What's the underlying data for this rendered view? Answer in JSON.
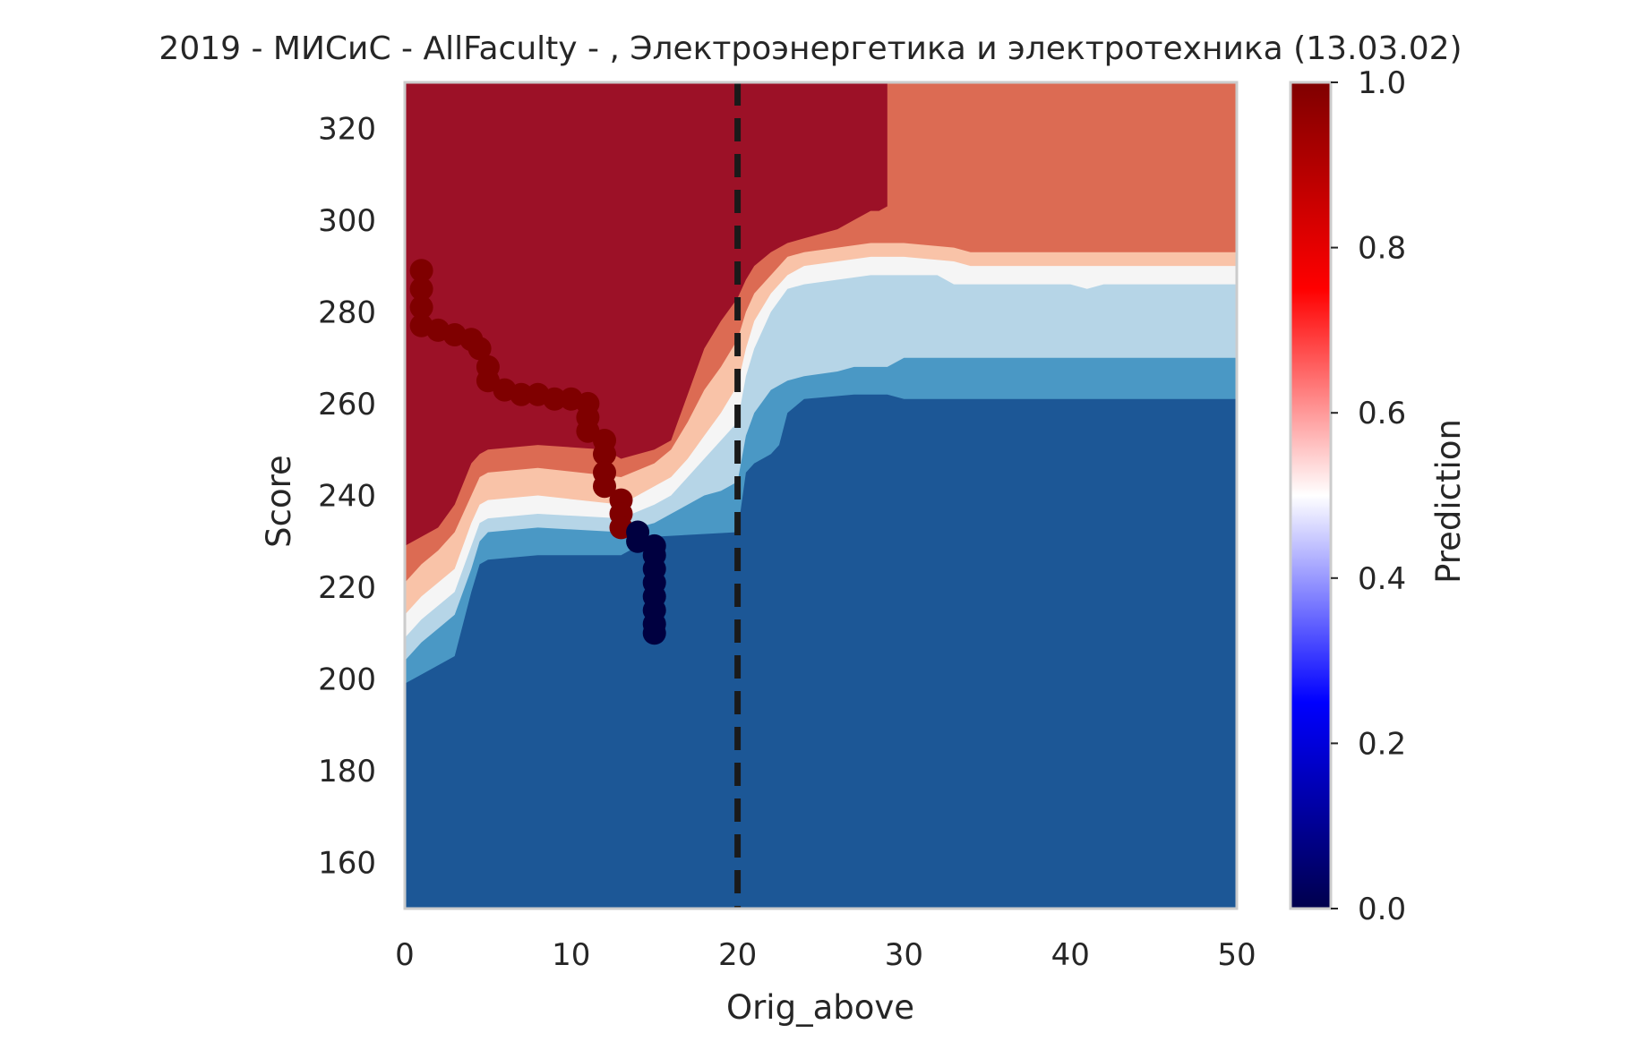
{
  "chart_data": {
    "type": "heatmap",
    "title": "2019 - МИСиС - AllFaculty - , Электроэнергетика и электротехника (13.03.02)",
    "xlabel": "Orig_above",
    "ylabel": "Score",
    "xlim": [
      0,
      50
    ],
    "ylim": [
      150,
      330
    ],
    "x_ticks": [
      "0",
      "10",
      "20",
      "30",
      "40",
      "50"
    ],
    "y_ticks": [
      "160",
      "180",
      "200",
      "220",
      "240",
      "260",
      "280",
      "300",
      "320"
    ],
    "grid": false,
    "threshold_line": {
      "x": 20,
      "style": "dashed",
      "color": "#1a1a1a"
    },
    "colorbar": {
      "label": "Prediction",
      "range": [
        0,
        1
      ],
      "ticks": [
        "0.0",
        "0.2",
        "0.4",
        "0.6",
        "0.8",
        "1.0"
      ],
      "colormap": "seismic"
    },
    "contour_levels": [
      {
        "level": "0.0-0.2",
        "color": "#1c5796"
      },
      {
        "level": "0.2-0.3",
        "color": "#4a98c5"
      },
      {
        "level": "0.3-0.4",
        "color": "#b6d5e7"
      },
      {
        "level": "0.4-0.5",
        "color": "#f5f5f5"
      },
      {
        "level": "0.5-0.6",
        "color": "#f9c3a8"
      },
      {
        "level": "0.6-0.8",
        "color": "#dc6b53"
      },
      {
        "level": "0.8-1.0",
        "color": "#9c1127"
      }
    ],
    "boundaries": [
      {
        "name": "level-0.2",
        "points": [
          [
            0,
            199
          ],
          [
            1,
            201
          ],
          [
            2,
            203
          ],
          [
            3,
            205
          ],
          [
            4,
            219
          ],
          [
            4.5,
            225
          ],
          [
            5,
            226
          ],
          [
            8,
            227
          ],
          [
            13,
            227
          ],
          [
            15,
            231
          ],
          [
            20,
            232
          ],
          [
            20.5,
            245
          ],
          [
            21,
            247
          ],
          [
            22,
            249
          ],
          [
            22.5,
            251
          ],
          [
            23,
            258
          ],
          [
            24,
            261
          ],
          [
            27,
            262
          ],
          [
            29,
            262
          ],
          [
            30,
            261
          ],
          [
            50,
            261
          ]
        ]
      },
      {
        "name": "level-0.3",
        "points": [
          [
            0,
            204
          ],
          [
            1,
            208
          ],
          [
            2,
            211
          ],
          [
            3,
            214
          ],
          [
            4,
            224
          ],
          [
            4.5,
            230
          ],
          [
            5,
            232
          ],
          [
            8,
            233
          ],
          [
            13,
            232
          ],
          [
            15,
            234
          ],
          [
            16,
            236
          ],
          [
            17,
            238
          ],
          [
            18,
            240
          ],
          [
            19,
            241
          ],
          [
            20,
            243
          ],
          [
            20.5,
            253
          ],
          [
            21,
            258
          ],
          [
            22,
            263
          ],
          [
            23,
            265
          ],
          [
            24,
            266
          ],
          [
            26,
            267
          ],
          [
            27,
            268
          ],
          [
            29,
            268
          ],
          [
            30,
            270
          ],
          [
            50,
            270
          ]
        ]
      },
      {
        "name": "level-0.4",
        "points": [
          [
            0,
            209
          ],
          [
            1,
            213
          ],
          [
            2,
            216
          ],
          [
            3,
            219
          ],
          [
            4,
            229
          ],
          [
            4.5,
            234
          ],
          [
            5,
            235
          ],
          [
            8,
            236
          ],
          [
            13,
            235
          ],
          [
            15,
            238
          ],
          [
            16,
            240
          ],
          [
            17,
            244
          ],
          [
            18,
            248
          ],
          [
            19,
            252
          ],
          [
            20,
            256
          ],
          [
            20.5,
            266
          ],
          [
            21,
            272
          ],
          [
            22,
            280
          ],
          [
            23,
            285
          ],
          [
            24,
            286
          ],
          [
            26,
            287
          ],
          [
            28,
            288
          ],
          [
            30,
            288
          ],
          [
            32,
            288
          ],
          [
            33,
            286
          ],
          [
            40,
            286
          ],
          [
            41,
            285
          ],
          [
            42,
            286
          ],
          [
            50,
            286
          ]
        ]
      },
      {
        "name": "level-0.5",
        "points": [
          [
            0,
            214
          ],
          [
            1,
            218
          ],
          [
            2,
            221
          ],
          [
            3,
            224
          ],
          [
            4,
            234
          ],
          [
            4.5,
            238
          ],
          [
            5,
            239
          ],
          [
            8,
            240
          ],
          [
            13,
            238
          ],
          [
            15,
            242
          ],
          [
            16,
            244
          ],
          [
            17,
            248
          ],
          [
            18,
            253
          ],
          [
            19,
            258
          ],
          [
            20,
            264
          ],
          [
            20.5,
            272
          ],
          [
            21,
            278
          ],
          [
            22,
            284
          ],
          [
            23,
            288
          ],
          [
            24,
            290
          ],
          [
            26,
            291
          ],
          [
            28,
            292
          ],
          [
            30,
            292
          ],
          [
            33,
            291
          ],
          [
            34,
            290
          ],
          [
            50,
            290
          ]
        ]
      },
      {
        "name": "level-0.6",
        "points": [
          [
            0,
            221
          ],
          [
            1,
            225
          ],
          [
            2,
            228
          ],
          [
            3,
            232
          ],
          [
            4,
            240
          ],
          [
            4.5,
            244
          ],
          [
            5,
            245
          ],
          [
            8,
            246
          ],
          [
            13,
            244
          ],
          [
            15,
            247
          ],
          [
            16,
            250
          ],
          [
            17,
            256
          ],
          [
            18,
            263
          ],
          [
            19,
            268
          ],
          [
            20,
            274
          ],
          [
            20.5,
            280
          ],
          [
            21,
            284
          ],
          [
            22,
            288
          ],
          [
            23,
            292
          ],
          [
            24,
            293
          ],
          [
            26,
            294
          ],
          [
            28,
            295
          ],
          [
            30,
            295
          ],
          [
            33,
            294
          ],
          [
            34,
            293
          ],
          [
            50,
            293
          ]
        ]
      },
      {
        "name": "level-0.8",
        "points": [
          [
            0,
            229
          ],
          [
            1,
            231
          ],
          [
            2,
            233
          ],
          [
            3,
            238
          ],
          [
            4,
            247
          ],
          [
            4.5,
            249
          ],
          [
            5,
            250
          ],
          [
            8,
            251
          ],
          [
            12,
            250
          ],
          [
            13,
            248
          ],
          [
            15,
            250
          ],
          [
            16,
            252
          ],
          [
            17,
            262
          ],
          [
            18,
            272
          ],
          [
            19,
            278
          ],
          [
            20,
            283
          ],
          [
            20.5,
            287
          ],
          [
            21,
            290
          ],
          [
            22,
            293
          ],
          [
            23,
            295
          ],
          [
            24,
            296
          ],
          [
            26,
            298
          ],
          [
            27,
            300
          ],
          [
            28,
            302
          ],
          [
            28.5,
            302
          ],
          [
            29,
            303
          ],
          [
            29,
            330
          ],
          [
            50,
            330
          ]
        ]
      }
    ],
    "scatter_high": {
      "label_value": 1.0,
      "color": "#7f0000",
      "points": [
        [
          1,
          289
        ],
        [
          1,
          285
        ],
        [
          1,
          281
        ],
        [
          1,
          277
        ],
        [
          2,
          276
        ],
        [
          3,
          275
        ],
        [
          4,
          274
        ],
        [
          4.5,
          272
        ],
        [
          5,
          268
        ],
        [
          5,
          265
        ],
        [
          6,
          263
        ],
        [
          7,
          262
        ],
        [
          8,
          262
        ],
        [
          9,
          261
        ],
        [
          10,
          261
        ],
        [
          11,
          260
        ],
        [
          11,
          257
        ],
        [
          11,
          254
        ],
        [
          12,
          252
        ],
        [
          12,
          249
        ],
        [
          12,
          245
        ],
        [
          12,
          242
        ],
        [
          13,
          239
        ],
        [
          13,
          236
        ],
        [
          13,
          233
        ]
      ]
    },
    "scatter_low": {
      "label_value": 0.0,
      "color": "#000040",
      "points": [
        [
          14,
          232
        ],
        [
          14,
          230
        ],
        [
          15,
          229
        ],
        [
          15,
          227
        ],
        [
          15,
          224
        ],
        [
          15,
          221
        ],
        [
          15,
          218
        ],
        [
          15,
          215
        ],
        [
          15,
          212
        ],
        [
          15,
          210
        ]
      ]
    }
  }
}
